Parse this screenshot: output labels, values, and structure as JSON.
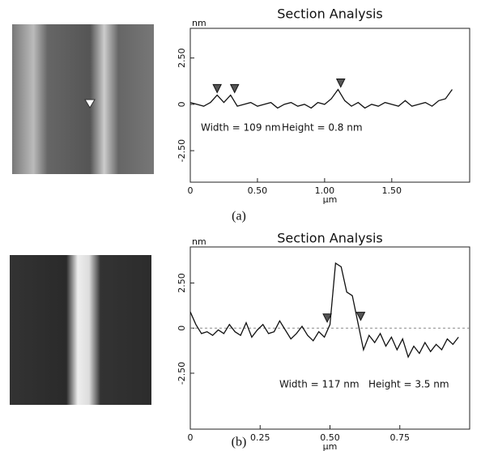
{
  "chart_data": [
    {
      "type": "line",
      "title": "Section Analysis",
      "label": "(a)",
      "y_label": "nm",
      "x_label": "µm",
      "annotations": [
        "Width = 109 nm",
        "Height = 0.8 nm"
      ],
      "x": [
        0,
        0.05,
        0.1,
        0.15,
        0.2,
        0.25,
        0.3,
        0.35,
        0.4,
        0.45,
        0.5,
        0.55,
        0.6,
        0.65,
        0.7,
        0.75,
        0.8,
        0.85,
        0.9,
        0.95,
        1.0,
        1.05,
        1.1,
        1.15,
        1.2,
        1.25,
        1.3,
        1.35,
        1.4,
        1.45,
        1.5,
        1.55,
        1.6,
        1.65,
        1.7,
        1.75,
        1.8,
        1.85,
        1.9,
        1.95
      ],
      "series": [
        {
          "color": "#111111",
          "values": [
            0.1,
            0.0,
            -0.1,
            0.1,
            0.5,
            0.1,
            0.5,
            -0.1,
            0.0,
            0.1,
            -0.1,
            0.0,
            0.1,
            -0.2,
            0.0,
            0.1,
            -0.1,
            0.0,
            -0.2,
            0.1,
            0.0,
            0.3,
            0.8,
            0.2,
            -0.1,
            0.1,
            -0.2,
            0.0,
            -0.1,
            0.1,
            0.0,
            -0.1,
            0.2,
            -0.1,
            0.0,
            0.1,
            -0.1,
            0.2,
            0.3,
            0.8
          ]
        }
      ],
      "cursors": {
        "x": [
          0.2,
          0.33,
          1.12
        ],
        "y": [
          0.5,
          0.5,
          0.8
        ]
      },
      "xlim": [
        0,
        2.08
      ],
      "ylim": [
        -4.2,
        4.1
      ],
      "xticks": [
        0,
        {
          "value": 0.5,
          "label": "0.50"
        },
        {
          "value": 1,
          "label": "1.00"
        },
        {
          "value": 1.5,
          "label": "1.50"
        }
      ],
      "yticks": [
        {
          "value": -2.5,
          "label": "-2.50"
        },
        0,
        {
          "value": 2.5,
          "label": "2.50"
        }
      ]
    },
    {
      "type": "line",
      "title": "Section Analysis",
      "label": "(b)",
      "y_label": "nm",
      "x_label": "µm",
      "annotations": [
        "Width = 117 nm",
        "Height = 3.5 nm"
      ],
      "x": [
        0,
        0.02,
        0.04,
        0.06,
        0.08,
        0.1,
        0.12,
        0.14,
        0.16,
        0.18,
        0.2,
        0.22,
        0.24,
        0.26,
        0.28,
        0.3,
        0.32,
        0.34,
        0.36,
        0.38,
        0.4,
        0.42,
        0.44,
        0.46,
        0.48,
        0.5,
        0.52,
        0.54,
        0.56,
        0.58,
        0.6,
        0.62,
        0.64,
        0.66,
        0.68,
        0.7,
        0.72,
        0.74,
        0.76,
        0.78,
        0.8,
        0.82,
        0.84,
        0.86,
        0.88,
        0.9,
        0.92,
        0.94,
        0.96
      ],
      "series": [
        {
          "color": "#111111",
          "values": [
            0.9,
            0.2,
            -0.3,
            -0.2,
            -0.4,
            -0.1,
            -0.3,
            0.2,
            -0.2,
            -0.4,
            0.3,
            -0.5,
            -0.1,
            0.2,
            -0.3,
            -0.2,
            0.4,
            -0.1,
            -0.6,
            -0.3,
            0.1,
            -0.4,
            -0.7,
            -0.2,
            -0.5,
            0.2,
            3.6,
            3.4,
            2.0,
            1.8,
            0.3,
            -1.2,
            -0.4,
            -0.8,
            -0.3,
            -1.0,
            -0.5,
            -1.2,
            -0.6,
            -1.6,
            -1.0,
            -1.4,
            -0.8,
            -1.3,
            -0.9,
            -1.2,
            -0.6,
            -0.9,
            -0.5
          ]
        }
      ],
      "cursors": {
        "x": [
          0.49,
          0.61
        ],
        "y": [
          0.2,
          0.3
        ]
      },
      "xlim": [
        0,
        1.0
      ],
      "ylim": [
        -5.6,
        4.5
      ],
      "xticks": [
        0,
        {
          "value": 0.25,
          "label": "0.25"
        },
        {
          "value": 0.5,
          "label": "0.50"
        },
        {
          "value": 0.75,
          "label": "0.75"
        }
      ],
      "yticks": [
        {
          "value": -2.5,
          "label": "-2.50"
        },
        0,
        {
          "value": 2.5,
          "label": "2.50"
        }
      ]
    }
  ]
}
